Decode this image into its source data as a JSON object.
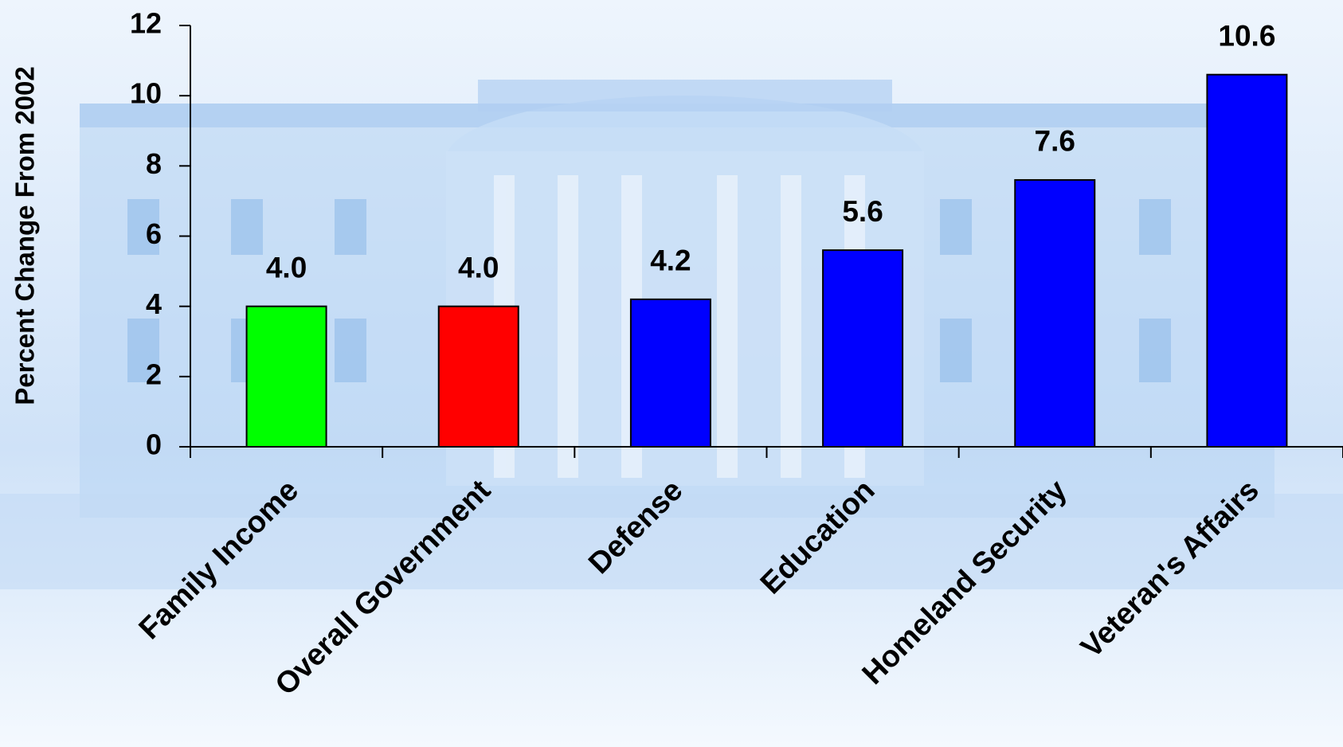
{
  "chart_data": {
    "type": "bar",
    "y_axis_label": "Percent Change From 2002",
    "categories": [
      "Family Income",
      "Overall Government",
      "Defense",
      "Education",
      "Homeland Security",
      "Veteran's Affairs"
    ],
    "values": [
      4.0,
      4.0,
      4.2,
      5.6,
      7.6,
      10.6
    ],
    "value_labels": [
      "4.0",
      "4.0",
      "4.2",
      "5.6",
      "7.6",
      "10.6"
    ],
    "colors": [
      "#00ff00",
      "#ff0000",
      "#0000ff",
      "#0000ff",
      "#0000ff",
      "#0000ff"
    ],
    "ylim": [
      0,
      12
    ],
    "yticks": [
      0,
      2,
      4,
      6,
      8,
      10,
      12
    ],
    "grid": false
  }
}
